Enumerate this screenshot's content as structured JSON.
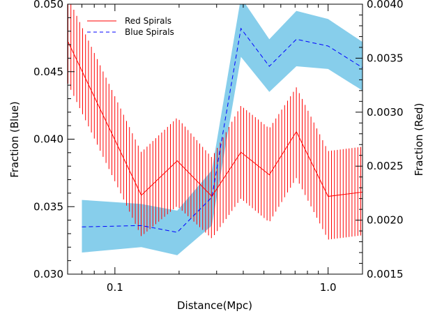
{
  "chart_data": {
    "type": "line",
    "xlabel": "Distance(Mpc)",
    "ylabel_left": "Fraction (Blue)",
    "ylabel_right": "Fraction (Red)",
    "x_scale": "log",
    "xlim": [
      0.06,
      1.45
    ],
    "ylim_left": [
      0.03,
      0.05
    ],
    "ylim_right": [
      0.0015,
      0.004
    ],
    "x_ticks": [
      {
        "value": 0.1,
        "label": "0.1"
      },
      {
        "value": 1.0,
        "label": "1.0"
      }
    ],
    "y_ticks_left": [
      {
        "value": 0.03,
        "label": "0.030"
      },
      {
        "value": 0.035,
        "label": "0.035"
      },
      {
        "value": 0.04,
        "label": "0.040"
      },
      {
        "value": 0.045,
        "label": "0.045"
      },
      {
        "value": 0.05,
        "label": "0.050"
      }
    ],
    "y_ticks_right": [
      {
        "value": 0.0015,
        "label": "0.0015"
      },
      {
        "value": 0.002,
        "label": "0.0020"
      },
      {
        "value": 0.0025,
        "label": "0.0025"
      },
      {
        "value": 0.003,
        "label": "0.0030"
      },
      {
        "value": 0.0035,
        "label": "0.0035"
      },
      {
        "value": 0.004,
        "label": "0.0040"
      }
    ],
    "legend": {
      "placement": "top-left",
      "entries": [
        {
          "label": "Red Spirals",
          "color": "#ff0000",
          "style": "solid"
        },
        {
          "label": "Blue Spirals",
          "color": "#0000ff",
          "style": "dashed"
        }
      ]
    },
    "series": [
      {
        "name": "Red Spirals",
        "axis": "right",
        "color": "#ff0000",
        "band_style": "vertical-hatch",
        "x": [
          0.06,
          0.133,
          0.196,
          0.285,
          0.39,
          0.53,
          0.71,
          1.0,
          1.45
        ],
        "y": [
          0.00366,
          0.00223,
          0.00255,
          0.00222,
          0.00263,
          0.00242,
          0.00282,
          0.00222,
          0.00226
        ],
        "lower": [
          0.00327,
          0.00185,
          0.00213,
          0.00183,
          0.0022,
          0.00198,
          0.00239,
          0.00182,
          0.00186
        ],
        "upper": [
          0.00407,
          0.00263,
          0.00295,
          0.00258,
          0.00306,
          0.00285,
          0.00323,
          0.00264,
          0.00268
        ]
      },
      {
        "name": "Blue Spirals",
        "axis": "left",
        "color": "#0000ff",
        "band_color": "#87ceeb",
        "x": [
          0.07,
          0.133,
          0.196,
          0.285,
          0.39,
          0.53,
          0.71,
          1.0,
          1.45
        ],
        "y": [
          0.0335,
          0.0336,
          0.0331,
          0.0357,
          0.0482,
          0.0454,
          0.0474,
          0.0469,
          0.0453
        ],
        "lower": [
          0.0316,
          0.032,
          0.0314,
          0.0336,
          0.0461,
          0.0435,
          0.0454,
          0.0452,
          0.0436
        ],
        "upper": [
          0.0355,
          0.0352,
          0.0347,
          0.0377,
          0.0505,
          0.0474,
          0.0495,
          0.0489,
          0.0472
        ]
      }
    ]
  }
}
